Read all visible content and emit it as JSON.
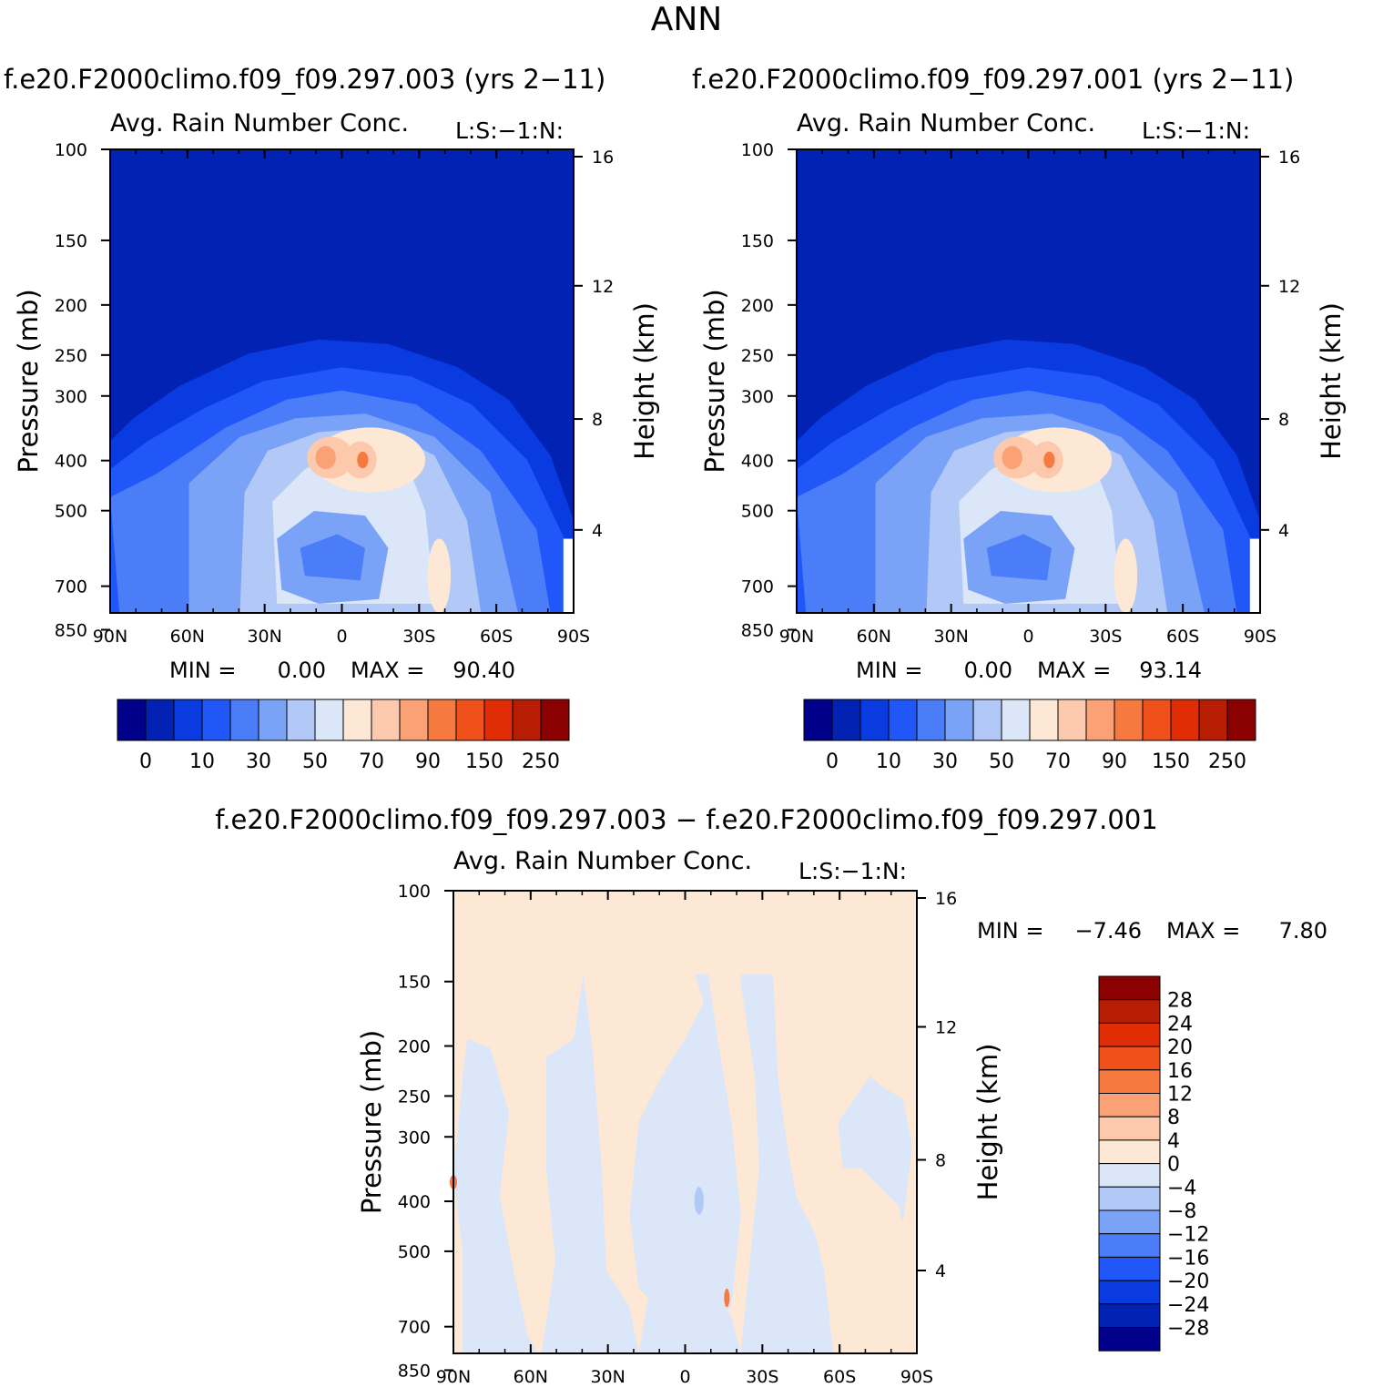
{
  "title": "ANN",
  "panels": [
    {
      "case_title": "f.e20.F2000climo.f09_f09.297.003 (yrs 2−11)",
      "plot_title": "Avg. Rain Number Conc.",
      "tag": "L:S:−1:N:",
      "stats": {
        "min_label": "MIN =",
        "min": "0.00",
        "max_label": "MAX =",
        "max": "90.40"
      }
    },
    {
      "case_title": "f.e20.F2000climo.f09_f09.297.001 (yrs 2−11)",
      "plot_title": "Avg. Rain Number Conc.",
      "tag": "L:S:−1:N:",
      "stats": {
        "min_label": "MIN =",
        "min": "0.00",
        "max_label": "MAX =",
        "max": "93.14"
      }
    }
  ],
  "diff": {
    "title": "f.e20.F2000climo.f09_f09.297.003 − f.e20.F2000climo.f09_f09.297.001",
    "plot_title": "Avg. Rain Number Conc.",
    "tag": "L:S:−1:N:",
    "stats": {
      "min_label": "MIN =",
      "min": "−7.46",
      "max_label": "MAX =",
      "max": "7.80"
    }
  },
  "chart_data": [
    {
      "type": "heatmap",
      "title": "Avg. Rain Number Conc.",
      "xlabel": "",
      "ylabel": "Pressure (mb)",
      "y2label": "Height (km)",
      "x_ticks": [
        "90N",
        "60N",
        "30N",
        "0",
        "30S",
        "60S",
        "90S"
      ],
      "y_ticks": [
        100,
        150,
        200,
        250,
        300,
        400,
        500,
        700,
        850
      ],
      "y2_ticks": [
        16,
        12,
        8,
        4
      ],
      "min": 0.0,
      "max": 90.4,
      "colorbar_labels": [
        "0",
        "10",
        "30",
        "50",
        "70",
        "90",
        "150",
        "250"
      ],
      "colors": [
        "#00008a",
        "#0222b4",
        "#0a3be0",
        "#2157f8",
        "#4a7df7",
        "#7aa3f7",
        "#b2c8f7",
        "#dbe7f8",
        "#fde8d6",
        "#fcc9ac",
        "#faa176",
        "#f67940",
        "#f0501a",
        "#e02d06",
        "#b71d03",
        "#8b0000"
      ]
    },
    {
      "type": "heatmap",
      "title": "Avg. Rain Number Conc.",
      "xlabel": "",
      "ylabel": "Pressure (mb)",
      "y2label": "Height (km)",
      "x_ticks": [
        "90N",
        "60N",
        "30N",
        "0",
        "30S",
        "60S",
        "90S"
      ],
      "y_ticks": [
        100,
        150,
        200,
        250,
        300,
        400,
        500,
        700,
        850
      ],
      "y2_ticks": [
        16,
        12,
        8,
        4
      ],
      "min": 0.0,
      "max": 93.14,
      "colorbar_labels": [
        "0",
        "10",
        "30",
        "50",
        "70",
        "90",
        "150",
        "250"
      ],
      "colors": [
        "#00008a",
        "#0222b4",
        "#0a3be0",
        "#2157f8",
        "#4a7df7",
        "#7aa3f7",
        "#b2c8f7",
        "#dbe7f8",
        "#fde8d6",
        "#fcc9ac",
        "#faa176",
        "#f67940",
        "#f0501a",
        "#e02d06",
        "#b71d03",
        "#8b0000"
      ]
    },
    {
      "type": "heatmap",
      "title": "Avg. Rain Number Conc.",
      "xlabel": "",
      "ylabel": "Pressure (mb)",
      "y2label": "Height (km)",
      "x_ticks": [
        "90N",
        "60N",
        "30N",
        "0",
        "30S",
        "60S",
        "90S"
      ],
      "y_ticks": [
        100,
        150,
        200,
        250,
        300,
        400,
        500,
        700,
        850
      ],
      "y2_ticks": [
        16,
        12,
        8,
        4
      ],
      "min": -7.46,
      "max": 7.8,
      "colorbar_labels": [
        "28",
        "24",
        "20",
        "16",
        "12",
        "8",
        "4",
        "0",
        "−4",
        "−8",
        "−12",
        "−16",
        "−20",
        "−24",
        "−28"
      ],
      "colors": [
        "#8b0000",
        "#b71d03",
        "#e02d06",
        "#f0501a",
        "#f67940",
        "#faa176",
        "#fcc9ac",
        "#fde8d6",
        "#dbe7f8",
        "#b2c8f7",
        "#7aa3f7",
        "#4a7df7",
        "#2157f8",
        "#0a3be0",
        "#0222b4",
        "#00008a"
      ]
    }
  ]
}
